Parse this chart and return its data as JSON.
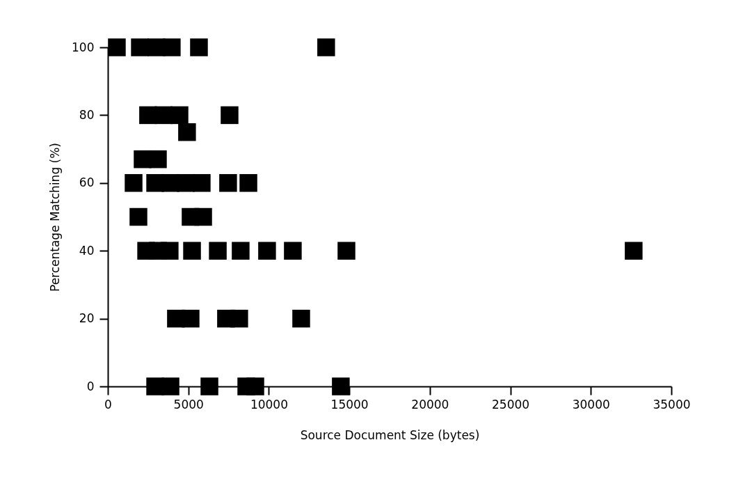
{
  "chart_data": {
    "type": "scatter",
    "xlabel": "Source Document Size (bytes)",
    "ylabel": "Percentage Matching (%)",
    "marker": "square",
    "grid": false,
    "legend": false,
    "xlim": [
      0,
      35000
    ],
    "xticks": [
      0,
      5000,
      10000,
      15000,
      20000,
      25000,
      30000,
      35000
    ],
    "ylim": [
      0,
      100
    ],
    "yticks": [
      0,
      20,
      40,
      60,
      80,
      100
    ],
    "series": [
      {
        "color": "#000000",
        "x": [
          560,
          1990,
          3020,
          3970,
          5660,
          13560,
          2500,
          3460,
          4450,
          7560,
          4920,
          2160,
          3110,
          1600,
          2940,
          3890,
          4840,
          5830,
          7470,
          8730,
          1900,
          5140,
          5920,
          2380,
          3110,
          3840,
          5230,
          6830,
          8250,
          9890,
          11490,
          14820,
          32660,
          4230,
          5140,
          7340,
          8160,
          12010,
          2940,
          3890,
          6310,
          8600,
          9160,
          14470
        ],
        "values": [
          100,
          100,
          100,
          100,
          100,
          100,
          80,
          80,
          80,
          80,
          75,
          67,
          67,
          60,
          60,
          60,
          60,
          60,
          60,
          60,
          50,
          50,
          50,
          40,
          40,
          40,
          40,
          40,
          40,
          40,
          40,
          40,
          40,
          20,
          20,
          20,
          20,
          20,
          0,
          0,
          0,
          0,
          0,
          0
        ]
      }
    ]
  }
}
